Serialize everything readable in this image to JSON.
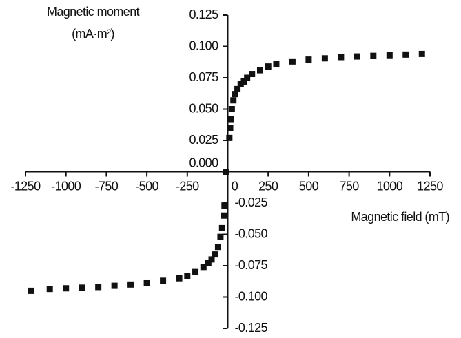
{
  "chart_data": {
    "type": "scatter",
    "y_label": [
      "Magnetic moment",
      "(mA·m²)"
    ],
    "x_label": "Magnetic field (mT)",
    "xlim": [
      -1250,
      1250
    ],
    "ylim": [
      -0.125,
      0.125
    ],
    "xticks": [
      -1250,
      -1000,
      -750,
      -500,
      -250,
      0,
      250,
      500,
      750,
      1000,
      1250
    ],
    "yticks": [
      {
        "value": -0.125,
        "label": "-0.125"
      },
      {
        "value": -0.1,
        "label": "-0.100"
      },
      {
        "value": -0.075,
        "label": "-0.075"
      },
      {
        "value": -0.05,
        "label": "-0.050"
      },
      {
        "value": -0.025,
        "label": "-0.025"
      },
      {
        "value": 0,
        "label": "0.000"
      },
      {
        "value": 0.025,
        "label": "0.025"
      },
      {
        "value": 0.05,
        "label": "0.050"
      },
      {
        "value": 0.075,
        "label": "0.075"
      },
      {
        "value": 0.1,
        "label": "0.100"
      },
      {
        "value": 0.125,
        "label": "0.125"
      }
    ],
    "grid": false,
    "series": [
      {
        "color": "#111111",
        "x": [
          -1215,
          -1100,
          -1000,
          -900,
          -800,
          -700,
          -600,
          -500,
          -400,
          -300,
          -250,
          -200,
          -150,
          -120,
          -100,
          -80,
          -60,
          -45,
          -35,
          -25,
          -20,
          -10,
          10,
          15,
          20,
          25,
          35,
          45,
          60,
          80,
          100,
          120,
          150,
          200,
          250,
          300,
          400,
          500,
          600,
          700,
          800,
          900,
          1000,
          1100,
          1200
        ],
        "y": [
          -0.095,
          -0.0935,
          -0.093,
          -0.0925,
          -0.092,
          -0.091,
          -0.09,
          -0.089,
          -0.087,
          -0.085,
          -0.083,
          -0.08,
          -0.076,
          -0.073,
          -0.07,
          -0.066,
          -0.06,
          -0.052,
          -0.045,
          -0.035,
          -0.027,
          0.0,
          0.027,
          0.035,
          0.042,
          0.05,
          0.057,
          0.062,
          0.066,
          0.07,
          0.072,
          0.075,
          0.078,
          0.081,
          0.084,
          0.086,
          0.088,
          0.0895,
          0.0905,
          0.0915,
          0.092,
          0.0925,
          0.093,
          0.0935,
          0.094
        ]
      }
    ]
  }
}
